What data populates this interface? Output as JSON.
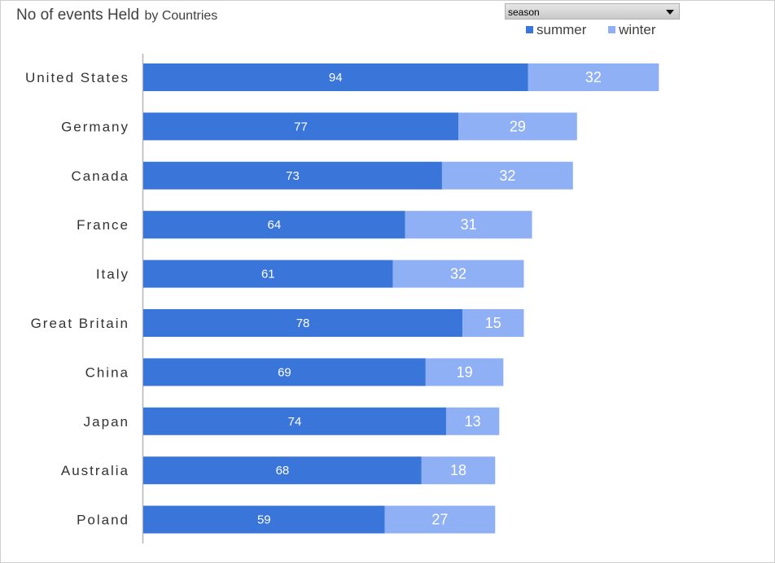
{
  "header": {
    "title": "No of events Held",
    "subtitle": "by Countries"
  },
  "filter": {
    "label": "season"
  },
  "colors": {
    "summer": "#3a75d9",
    "winter": "#8fb0f5",
    "axis": "#b5b5b5"
  },
  "chart_data": {
    "type": "bar",
    "orientation": "horizontal",
    "stacked": true,
    "title": "No of events Held",
    "subtitle": "by Countries",
    "categories": [
      "United States",
      "Germany",
      "Canada",
      "France",
      "Italy",
      "Great Britain",
      "China",
      "Japan",
      "Australia",
      "Poland"
    ],
    "series": [
      {
        "name": "summer",
        "values": [
          94,
          77,
          73,
          64,
          61,
          78,
          69,
          74,
          68,
          59
        ]
      },
      {
        "name": "winter",
        "values": [
          32,
          29,
          32,
          31,
          32,
          15,
          19,
          13,
          18,
          27
        ]
      }
    ],
    "xlim": [
      0,
      150
    ],
    "grid": false,
    "legend": "top-right",
    "data_labels": true
  }
}
